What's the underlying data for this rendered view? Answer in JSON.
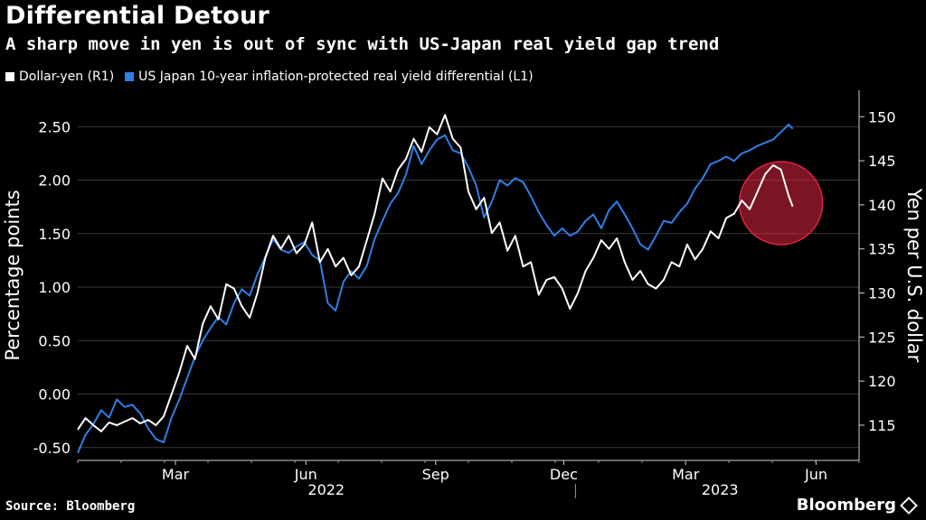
{
  "header": {
    "title": "Differential Detour",
    "subtitle": "A sharp move in yen is out of sync with US-Japan real yield gap trend"
  },
  "footer": {
    "source": "Source: Bloomberg",
    "brand": "Bloomberg"
  },
  "colors": {
    "background": "#000000",
    "dollar_yen": "#ffffff",
    "real_yield": "#2f7fe6",
    "highlight": "#e0243f"
  },
  "chart_data": {
    "type": "line",
    "title": "Differential Detour",
    "subtitle": "A sharp move in yen is out of sync with US-Japan real yield gap trend",
    "ylabel_left": "Percentage points",
    "ylabel_right": "Yen per U.S. dollar",
    "ylim_left": [
      -0.62,
      2.84
    ],
    "ylim_right": [
      111,
      153
    ],
    "yticks_left": [
      "2.50",
      "2.00",
      "1.50",
      "1.00",
      "0.50",
      "0.00",
      "-0.50"
    ],
    "ytick_values_left": [
      2.5,
      2.0,
      1.5,
      1.0,
      0.5,
      0.0,
      -0.5
    ],
    "yticks_right": [
      "150",
      "145",
      "140",
      "135",
      "130",
      "125",
      "120",
      "115"
    ],
    "ytick_values_right": [
      150,
      145,
      140,
      135,
      130,
      125,
      120,
      115
    ],
    "x_range": [
      0,
      1.0
    ],
    "xticks": [
      {
        "label": "Mar",
        "t": 0.125
      },
      {
        "label": "Jun",
        "t": 0.292
      },
      {
        "label": "Sep",
        "t": 0.458
      },
      {
        "label": "Dec",
        "t": 0.622
      },
      {
        "label": "Mar",
        "t": 0.778
      },
      {
        "label": "Jun",
        "t": 0.945
      }
    ],
    "year_labels": [
      {
        "label": "2022",
        "t": 0.318
      },
      {
        "label": "2023",
        "t": 0.822
      }
    ],
    "year_divider_t": 0.637,
    "series": [
      {
        "name": "Dollar-yen (R1)",
        "axis": "right",
        "color": "#ffffff",
        "points": [
          [
            0.0,
            114.5
          ],
          [
            0.01,
            115.8
          ],
          [
            0.02,
            115.0
          ],
          [
            0.03,
            114.3
          ],
          [
            0.04,
            115.3
          ],
          [
            0.05,
            115.0
          ],
          [
            0.06,
            115.4
          ],
          [
            0.07,
            115.8
          ],
          [
            0.08,
            115.2
          ],
          [
            0.09,
            115.6
          ],
          [
            0.1,
            115.0
          ],
          [
            0.11,
            116.0
          ],
          [
            0.12,
            118.5
          ],
          [
            0.13,
            121.0
          ],
          [
            0.14,
            124.0
          ],
          [
            0.15,
            122.5
          ],
          [
            0.16,
            126.5
          ],
          [
            0.17,
            128.5
          ],
          [
            0.18,
            127.0
          ],
          [
            0.19,
            131.0
          ],
          [
            0.2,
            130.5
          ],
          [
            0.21,
            128.5
          ],
          [
            0.22,
            127.2
          ],
          [
            0.23,
            130.0
          ],
          [
            0.24,
            134.0
          ],
          [
            0.25,
            136.5
          ],
          [
            0.26,
            135.0
          ],
          [
            0.27,
            136.5
          ],
          [
            0.28,
            134.5
          ],
          [
            0.29,
            135.5
          ],
          [
            0.3,
            138.0
          ],
          [
            0.31,
            133.5
          ],
          [
            0.32,
            135.0
          ],
          [
            0.33,
            133.0
          ],
          [
            0.34,
            134.0
          ],
          [
            0.35,
            132.0
          ],
          [
            0.36,
            133.0
          ],
          [
            0.37,
            136.0
          ],
          [
            0.38,
            139.0
          ],
          [
            0.39,
            143.0
          ],
          [
            0.4,
            141.5
          ],
          [
            0.41,
            144.0
          ],
          [
            0.42,
            145.2
          ],
          [
            0.43,
            147.5
          ],
          [
            0.44,
            146.0
          ],
          [
            0.45,
            148.8
          ],
          [
            0.46,
            148.0
          ],
          [
            0.47,
            150.2
          ],
          [
            0.48,
            147.5
          ],
          [
            0.49,
            146.5
          ],
          [
            0.5,
            141.5
          ],
          [
            0.51,
            139.5
          ],
          [
            0.52,
            140.8
          ],
          [
            0.53,
            136.8
          ],
          [
            0.54,
            138.0
          ],
          [
            0.55,
            134.8
          ],
          [
            0.56,
            136.5
          ],
          [
            0.57,
            133.0
          ],
          [
            0.58,
            133.5
          ],
          [
            0.59,
            129.8
          ],
          [
            0.6,
            131.5
          ],
          [
            0.61,
            131.8
          ],
          [
            0.62,
            130.5
          ],
          [
            0.63,
            128.2
          ],
          [
            0.64,
            130.0
          ],
          [
            0.65,
            132.5
          ],
          [
            0.66,
            134.0
          ],
          [
            0.67,
            136.0
          ],
          [
            0.68,
            135.0
          ],
          [
            0.69,
            136.2
          ],
          [
            0.7,
            133.5
          ],
          [
            0.71,
            131.5
          ],
          [
            0.72,
            132.5
          ],
          [
            0.73,
            131.0
          ],
          [
            0.74,
            130.5
          ],
          [
            0.75,
            131.5
          ],
          [
            0.76,
            133.5
          ],
          [
            0.77,
            133.0
          ],
          [
            0.78,
            135.5
          ],
          [
            0.79,
            133.8
          ],
          [
            0.8,
            135.0
          ],
          [
            0.81,
            137.0
          ],
          [
            0.82,
            136.2
          ],
          [
            0.83,
            138.5
          ],
          [
            0.84,
            139.0
          ],
          [
            0.85,
            140.5
          ],
          [
            0.86,
            139.5
          ],
          [
            0.87,
            141.5
          ],
          [
            0.88,
            143.5
          ],
          [
            0.89,
            144.5
          ],
          [
            0.9,
            144.0
          ],
          [
            0.91,
            141.0
          ],
          [
            0.915,
            139.8
          ]
        ]
      },
      {
        "name": "US Japan 10-year inflation-protected real yield differential (L1)",
        "axis": "left",
        "color": "#2f7fe6",
        "points": [
          [
            0.0,
            -0.55
          ],
          [
            0.01,
            -0.38
          ],
          [
            0.02,
            -0.28
          ],
          [
            0.03,
            -0.15
          ],
          [
            0.04,
            -0.22
          ],
          [
            0.05,
            -0.05
          ],
          [
            0.06,
            -0.12
          ],
          [
            0.07,
            -0.1
          ],
          [
            0.08,
            -0.18
          ],
          [
            0.09,
            -0.32
          ],
          [
            0.1,
            -0.42
          ],
          [
            0.11,
            -0.45
          ],
          [
            0.12,
            -0.22
          ],
          [
            0.13,
            -0.05
          ],
          [
            0.14,
            0.15
          ],
          [
            0.15,
            0.35
          ],
          [
            0.16,
            0.5
          ],
          [
            0.17,
            0.62
          ],
          [
            0.18,
            0.72
          ],
          [
            0.19,
            0.65
          ],
          [
            0.2,
            0.85
          ],
          [
            0.21,
            0.98
          ],
          [
            0.22,
            0.92
          ],
          [
            0.23,
            1.12
          ],
          [
            0.24,
            1.28
          ],
          [
            0.25,
            1.45
          ],
          [
            0.26,
            1.35
          ],
          [
            0.27,
            1.32
          ],
          [
            0.28,
            1.38
          ],
          [
            0.29,
            1.42
          ],
          [
            0.3,
            1.3
          ],
          [
            0.31,
            1.25
          ],
          [
            0.32,
            0.85
          ],
          [
            0.33,
            0.78
          ],
          [
            0.34,
            1.05
          ],
          [
            0.35,
            1.15
          ],
          [
            0.36,
            1.08
          ],
          [
            0.37,
            1.2
          ],
          [
            0.38,
            1.45
          ],
          [
            0.39,
            1.62
          ],
          [
            0.4,
            1.78
          ],
          [
            0.41,
            1.88
          ],
          [
            0.42,
            2.05
          ],
          [
            0.43,
            2.32
          ],
          [
            0.44,
            2.15
          ],
          [
            0.45,
            2.28
          ],
          [
            0.46,
            2.38
          ],
          [
            0.47,
            2.42
          ],
          [
            0.48,
            2.28
          ],
          [
            0.49,
            2.25
          ],
          [
            0.5,
            2.12
          ],
          [
            0.51,
            1.95
          ],
          [
            0.52,
            1.65
          ],
          [
            0.53,
            1.8
          ],
          [
            0.54,
            2.0
          ],
          [
            0.55,
            1.95
          ],
          [
            0.56,
            2.02
          ],
          [
            0.57,
            1.98
          ],
          [
            0.58,
            1.85
          ],
          [
            0.59,
            1.7
          ],
          [
            0.6,
            1.58
          ],
          [
            0.61,
            1.48
          ],
          [
            0.62,
            1.55
          ],
          [
            0.63,
            1.48
          ],
          [
            0.64,
            1.52
          ],
          [
            0.65,
            1.62
          ],
          [
            0.66,
            1.68
          ],
          [
            0.67,
            1.55
          ],
          [
            0.68,
            1.72
          ],
          [
            0.69,
            1.8
          ],
          [
            0.7,
            1.68
          ],
          [
            0.71,
            1.55
          ],
          [
            0.72,
            1.4
          ],
          [
            0.73,
            1.35
          ],
          [
            0.74,
            1.48
          ],
          [
            0.75,
            1.62
          ],
          [
            0.76,
            1.6
          ],
          [
            0.77,
            1.7
          ],
          [
            0.78,
            1.78
          ],
          [
            0.79,
            1.92
          ],
          [
            0.8,
            2.02
          ],
          [
            0.81,
            2.15
          ],
          [
            0.82,
            2.18
          ],
          [
            0.83,
            2.22
          ],
          [
            0.84,
            2.18
          ],
          [
            0.85,
            2.25
          ],
          [
            0.86,
            2.28
          ],
          [
            0.87,
            2.32
          ],
          [
            0.88,
            2.35
          ],
          [
            0.89,
            2.38
          ],
          [
            0.9,
            2.45
          ],
          [
            0.91,
            2.52
          ],
          [
            0.915,
            2.48
          ]
        ]
      }
    ],
    "annotations": [
      {
        "type": "circle",
        "note": "highlighted recent divergence",
        "center_t": 0.9,
        "center_right": 140.2
      }
    ]
  }
}
